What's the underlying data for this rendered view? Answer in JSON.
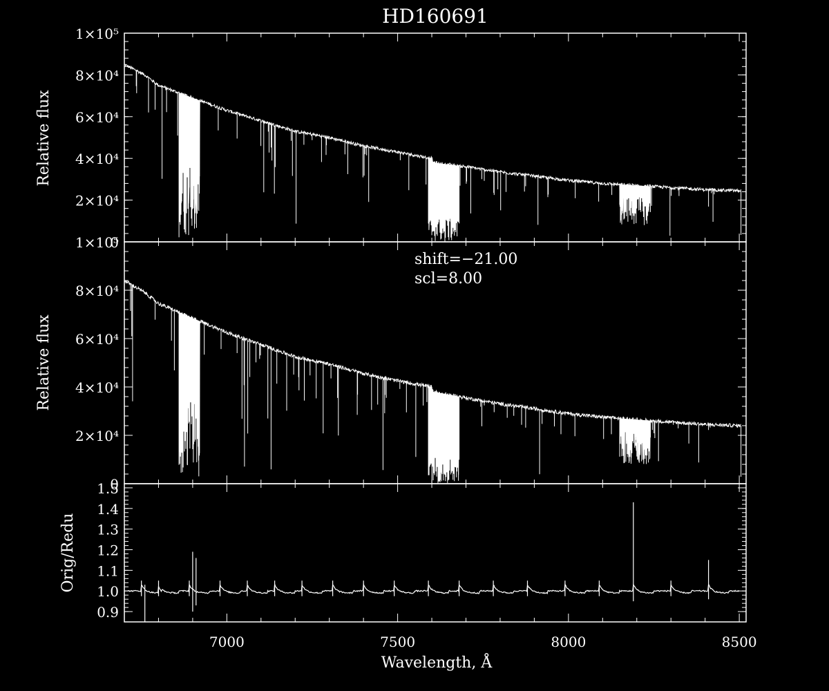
{
  "chart_data": [
    {
      "type": "line",
      "title": "HD160691",
      "ylabel": "Relative flux",
      "xlim": [
        6700,
        8520
      ],
      "ylim": [
        0,
        100000
      ],
      "yticks": [
        0,
        20000,
        40000,
        60000,
        80000,
        100000
      ],
      "ytick_labels": [
        "0",
        "2×10⁴",
        "4×10⁴",
        "6×10⁴",
        "8×10⁴",
        "1×10⁵"
      ],
      "continuum": {
        "x": [
          6700,
          6760,
          6800,
          6900,
          7000,
          7100,
          7200,
          7300,
          7400,
          7500,
          7600,
          7605,
          7700,
          7800,
          7900,
          8000,
          8100,
          8200,
          8300,
          8400,
          8500
        ],
        "y": [
          85000,
          80000,
          75000,
          69000,
          63000,
          58000,
          53000,
          50000,
          46000,
          43000,
          40000,
          38000,
          36000,
          33500,
          31500,
          29500,
          28000,
          27000,
          26000,
          25000,
          24500
        ]
      },
      "bands": [
        {
          "from": 6860,
          "to": 6920,
          "min": 2000
        },
        {
          "from": 7590,
          "to": 7680,
          "min": 0
        },
        {
          "from": 8150,
          "to": 8240,
          "min": 8000
        }
      ]
    },
    {
      "type": "line",
      "ylabel": "Relative flux",
      "xlim": [
        6700,
        8520
      ],
      "ylim": [
        0,
        100000
      ],
      "yticks": [
        0,
        20000,
        40000,
        60000,
        80000,
        100000
      ],
      "ytick_labels": [
        "0",
        "2×10⁴",
        "4×10⁴",
        "6×10⁴",
        "8×10⁴",
        "1×10⁵"
      ],
      "annotations": [
        "shift=−21.00",
        "scl=8.00"
      ],
      "continuum": {
        "x": [
          6700,
          6760,
          6800,
          6900,
          7000,
          7100,
          7200,
          7300,
          7400,
          7500,
          7600,
          7605,
          7700,
          7800,
          7900,
          8000,
          8100,
          8200,
          8300,
          8400,
          8500
        ],
        "y": [
          84000,
          79000,
          74500,
          68500,
          62500,
          57500,
          52500,
          49500,
          45500,
          42500,
          40000,
          38000,
          35500,
          33000,
          31000,
          29000,
          27500,
          26500,
          25500,
          24500,
          24000
        ]
      },
      "bands": [
        {
          "from": 6860,
          "to": 6920,
          "min": 2000
        },
        {
          "from": 7590,
          "to": 7680,
          "min": 0
        },
        {
          "from": 8150,
          "to": 8240,
          "min": 8000
        }
      ]
    },
    {
      "type": "line",
      "ylabel": "Orig/Redu",
      "xlabel": "Wavelength, Å",
      "xlim": [
        6700,
        8520
      ],
      "ylim": [
        0.85,
        1.52
      ],
      "yticks": [
        0.9,
        1.0,
        1.1,
        1.2,
        1.3,
        1.4,
        1.5
      ],
      "ytick_labels": [
        "0.9",
        "1.0",
        "1.1",
        "1.2",
        "1.3",
        "1.4",
        "1.5"
      ],
      "xticks": [
        7000,
        7500,
        8000,
        8500
      ],
      "xtick_labels": [
        "7000",
        "7500",
        "8000",
        "8500"
      ],
      "baseline": 1.0,
      "order_edges": [
        6750,
        6800,
        6890,
        6980,
        7060,
        7140,
        7220,
        7310,
        7400,
        7490,
        7590,
        7680,
        7780,
        7880,
        7990,
        8090,
        8190,
        8300,
        8410
      ],
      "spikes": [
        {
          "x": 6900,
          "top": 1.19,
          "bottom": 0.9
        },
        {
          "x": 6910,
          "top": 1.16,
          "bottom": 0.93
        },
        {
          "x": 6760,
          "top": 1.03,
          "bottom": 0.85
        },
        {
          "x": 8190,
          "top": 1.43,
          "bottom": 0.95
        },
        {
          "x": 8410,
          "top": 1.15,
          "bottom": 0.96
        }
      ]
    }
  ],
  "colors": {
    "background": "#000000",
    "foreground": "#ffffff"
  }
}
